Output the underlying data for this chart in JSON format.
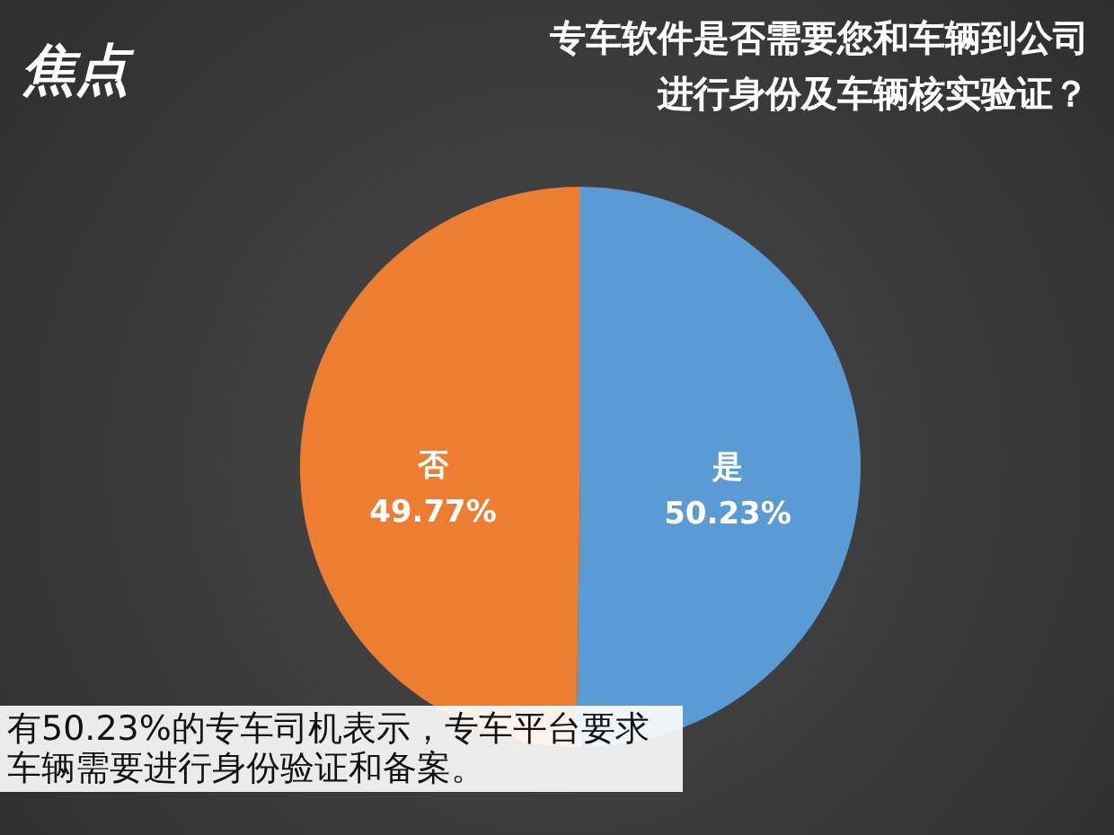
{
  "chart_data": {
    "type": "pie",
    "title": "专车软件是否需要您和车辆到公司进行身份及车辆核实验证？",
    "categories": [
      "是",
      "否"
    ],
    "values": [
      50.23,
      49.77
    ],
    "colors": [
      "#5b9bd5",
      "#ed7d31"
    ],
    "value_labels": [
      "50.23%",
      "49.77%"
    ],
    "annotations": [
      "焦点",
      "有50.23%的专车司机表示，专车平台要求车辆需要进行身份验证和备案。"
    ]
  }
}
